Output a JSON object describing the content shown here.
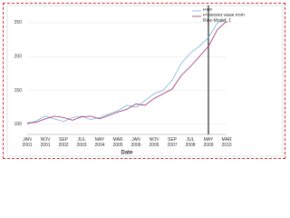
{
  "chart_data": {
    "type": "line",
    "x_label": "Date",
    "categories": [
      "JAN 2001",
      null,
      "NOV 2001",
      null,
      "SEP 2002",
      null,
      "JUL 2003",
      null,
      "MAY 2004",
      null,
      "MAR 2005",
      null,
      "JAN 2006",
      null,
      "NOV 2006",
      null,
      "SEP 2007",
      null,
      "JUL 2008",
      null,
      "MAY 2009",
      null,
      "MAR 2010"
    ],
    "series": [
      {
        "name": "Rice",
        "color": "#7ab4d8",
        "values": [
          100,
          105,
          112,
          108,
          104,
          110,
          112,
          107,
          110,
          115,
          120,
          128,
          125,
          135,
          145,
          150,
          165,
          190,
          205,
          215,
          228,
          250,
          255
        ]
      },
      {
        "name": "Predicted value from Rice-Model_1",
        "color": "#a0306a",
        "values": [
          102,
          103,
          108,
          112,
          110,
          106,
          111,
          112,
          108,
          113,
          118,
          122,
          130,
          128,
          138,
          145,
          152,
          172,
          185,
          200,
          215,
          240,
          252
        ]
      }
    ],
    "ylim": [
      85,
      270
    ],
    "yticks": [
      100,
      150,
      200,
      250
    ],
    "grid": true,
    "vline_x": "MAY 2009",
    "legend": "top-right"
  }
}
